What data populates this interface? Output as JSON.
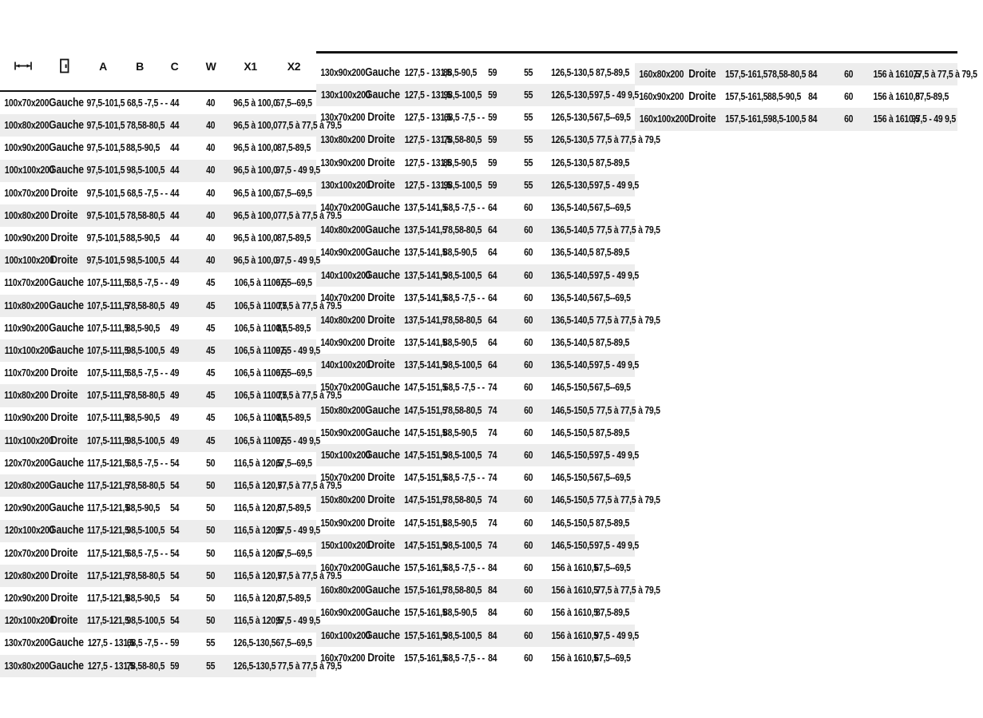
{
  "page": {
    "kind": "product-dimension-spec-table",
    "language": "fr"
  },
  "colors": {
    "rule": "#141414",
    "stripe": "#ededed",
    "text": "#111111",
    "background": "#ffffff"
  },
  "table": {
    "headers": {
      "size_icon": "width-dimension-icon",
      "side_icon": "door-icon",
      "a": "A",
      "b": "B",
      "c": "C",
      "w": "W",
      "x1": "X1",
      "x2": "X2"
    },
    "columns": [
      {
        "first_row_shaded": false,
        "rows": [
          [
            "100x70x200",
            "Gauche",
            "97,5-101,5",
            "68,5 -7,5 - -",
            "44",
            "40",
            "96,5 à 100,0",
            "67,5--69,5"
          ],
          [
            "100x80x200",
            "Gauche",
            "97,5-101,5",
            "78,58-80,5",
            "44",
            "40",
            "96,5 à 100,0",
            "77,5 à 77,5 à 79,5"
          ],
          [
            "100x90x200",
            "Gauche",
            "97,5-101,5",
            "88,5-90,5",
            "44",
            "40",
            "96,5 à 100,0",
            "87,5-89,5"
          ],
          [
            "100x100x200",
            "Gauche",
            "97,5-101,5",
            "98,5-100,5",
            "44",
            "40",
            "96,5 à 100,0",
            "97,5 - 49 9,5"
          ],
          [
            "100x70x200",
            "Droite",
            "97,5-101,5",
            "68,5 -7,5 - -",
            "44",
            "40",
            "96,5 à 100,0",
            "67,5--69,5"
          ],
          [
            "100x80x200",
            "Droite",
            "97,5-101,5",
            "78,58-80,5",
            "44",
            "40",
            "96,5 à 100,0",
            "77,5 à 77,5 à 79,5"
          ],
          [
            "100x90x200",
            "Droite",
            "97,5-101,5",
            "88,5-90,5",
            "44",
            "40",
            "96,5 à 100,0",
            "87,5-89,5"
          ],
          [
            "100x100x200",
            "Droite",
            "97,5-101,5",
            "98,5-100,5",
            "44",
            "40",
            "96,5 à 100,0",
            "97,5 - 49 9,5"
          ],
          [
            "110x70x200",
            "Gauche",
            "107,5-111,5",
            "68,5 -7,5 - -",
            "49",
            "45",
            "106,5 à 1100,5",
            "67,5--69,5"
          ],
          [
            "110x80x200",
            "Gauche",
            "107,5-111,5",
            "78,58-80,5",
            "49",
            "45",
            "106,5 à 1100,5",
            "77,5 à 77,5 à 79,5"
          ],
          [
            "110x90x200",
            "Gauche",
            "107,5-111,5",
            "88,5-90,5",
            "49",
            "45",
            "106,5 à 1100,5",
            "87,5-89,5"
          ],
          [
            "110x100x200",
            "Gauche",
            "107,5-111,5",
            "98,5-100,5",
            "49",
            "45",
            "106,5 à 1100,5",
            "97,5 - 49 9,5"
          ],
          [
            "110x70x200",
            "Droite",
            "107,5-111,5",
            "68,5 -7,5 - -",
            "49",
            "45",
            "106,5 à 1100,5",
            "67,5--69,5"
          ],
          [
            "110x80x200",
            "Droite",
            "107,5-111,5",
            "78,58-80,5",
            "49",
            "45",
            "106,5 à 1100,5",
            "77,5 à 77,5 à 79,5"
          ],
          [
            "110x90x200",
            "Droite",
            "107,5-111,5",
            "88,5-90,5",
            "49",
            "45",
            "106,5 à 1100,5",
            "87,5-89,5"
          ],
          [
            "110x100x200",
            "Droite",
            "107,5-111,5",
            "98,5-100,5",
            "49",
            "45",
            "106,5 à 1100,5",
            "97,5 - 49 9,5"
          ],
          [
            "120x70x200",
            "Gauche",
            "117,5-121,5",
            "68,5 -7,5 - -",
            "54",
            "50",
            "116,5 à 120,5",
            "67,5--69,5"
          ],
          [
            "120x80x200",
            "Gauche",
            "117,5-121,5",
            "78,58-80,5",
            "54",
            "50",
            "116,5 à 120,5",
            "77,5 à 77,5 à 79,5"
          ],
          [
            "120x90x200",
            "Gauche",
            "117,5-121,5",
            "88,5-90,5",
            "54",
            "50",
            "116,5 à 120,5",
            "87,5-89,5"
          ],
          [
            "120x100x200",
            "Gauche",
            "117,5-121,5",
            "98,5-100,5",
            "54",
            "50",
            "116,5 à 120,5",
            "97,5 - 49 9,5"
          ],
          [
            "120x70x200",
            "Droite",
            "117,5-121,5",
            "68,5 -7,5 - -",
            "54",
            "50",
            "116,5 à 120,5",
            "67,5--69,5"
          ],
          [
            "120x80x200",
            "Droite",
            "117,5-121,5",
            "78,58-80,5",
            "54",
            "50",
            "116,5 à 120,5",
            "77,5 à 77,5 à 79,5"
          ],
          [
            "120x90x200",
            "Droite",
            "117,5-121,5",
            "88,5-90,5",
            "54",
            "50",
            "116,5 à 120,5",
            "87,5-89,5"
          ],
          [
            "120x100x200",
            "Droite",
            "117,5-121,5",
            "98,5-100,5",
            "54",
            "50",
            "116,5 à 120,5",
            "97,5 - 49 9,5"
          ],
          [
            "130x70x200",
            "Gauche",
            "127,5 - 131,5",
            "68,5 -7,5 - -",
            "59",
            "55",
            "126,5-130,5",
            "67,5--69,5"
          ],
          [
            "130x80x200",
            "Gauche",
            "127,5 - 131,5",
            "78,58-80,5",
            "59",
            "55",
            "126,5-130,5",
            "77,5 à 77,5 à 79,5"
          ]
        ]
      },
      {
        "first_row_shaded": false,
        "rows": [
          [
            "130x90x200",
            "Gauche",
            "127,5 - 131,5",
            "88,5-90,5",
            "59",
            "55",
            "126,5-130,5",
            "87,5-89,5"
          ],
          [
            "130x100x200",
            "Gauche",
            "127,5 - 131,5",
            "98,5-100,5",
            "59",
            "55",
            "126,5-130,5",
            "97,5 - 49 9,5"
          ],
          [
            "130x70x200",
            "Droite",
            "127,5 - 131,5",
            "68,5 -7,5 - -",
            "59",
            "55",
            "126,5-130,5",
            "67,5--69,5"
          ],
          [
            "130x80x200",
            "Droite",
            "127,5 - 131,5",
            "78,58-80,5",
            "59",
            "55",
            "126,5-130,5",
            "77,5 à 77,5 à 79,5"
          ],
          [
            "130x90x200",
            "Droite",
            "127,5 - 131,5",
            "88,5-90,5",
            "59",
            "55",
            "126,5-130,5",
            "87,5-89,5"
          ],
          [
            "130x100x200",
            "Droite",
            "127,5 - 131,5",
            "98,5-100,5",
            "59",
            "55",
            "126,5-130,5",
            "97,5 - 49 9,5"
          ],
          [
            "140x70x200",
            "Gauche",
            "137,5-141,5",
            "68,5 -7,5 - -",
            "64",
            "60",
            "136,5-140,5",
            "67,5--69,5"
          ],
          [
            "140x80x200",
            "Gauche",
            "137,5-141,5",
            "78,58-80,5",
            "64",
            "60",
            "136,5-140,5",
            "77,5 à 77,5 à 79,5"
          ],
          [
            "140x90x200",
            "Gauche",
            "137,5-141,5",
            "88,5-90,5",
            "64",
            "60",
            "136,5-140,5",
            "87,5-89,5"
          ],
          [
            "140x100x200",
            "Gauche",
            "137,5-141,5",
            "98,5-100,5",
            "64",
            "60",
            "136,5-140,5",
            "97,5 - 49 9,5"
          ],
          [
            "140x70x200",
            "Droite",
            "137,5-141,5",
            "68,5 -7,5 - -",
            "64",
            "60",
            "136,5-140,5",
            "67,5--69,5"
          ],
          [
            "140x80x200",
            "Droite",
            "137,5-141,5",
            "78,58-80,5",
            "64",
            "60",
            "136,5-140,5",
            "77,5 à 77,5 à 79,5"
          ],
          [
            "140x90x200",
            "Droite",
            "137,5-141,5",
            "88,5-90,5",
            "64",
            "60",
            "136,5-140,5",
            "87,5-89,5"
          ],
          [
            "140x100x200",
            "Droite",
            "137,5-141,5",
            "98,5-100,5",
            "64",
            "60",
            "136,5-140,5",
            "97,5 - 49 9,5"
          ],
          [
            "150x70x200",
            "Gauche",
            "147,5-151,5",
            "68,5 -7,5 - -",
            "74",
            "60",
            "146,5-150,5",
            "67,5--69,5"
          ],
          [
            "150x80x200",
            "Gauche",
            "147,5-151,5",
            "78,58-80,5",
            "74",
            "60",
            "146,5-150,5",
            "77,5 à 77,5 à 79,5"
          ],
          [
            "150x90x200",
            "Gauche",
            "147,5-151,5",
            "88,5-90,5",
            "74",
            "60",
            "146,5-150,5",
            "87,5-89,5"
          ],
          [
            "150x100x200",
            "Gauche",
            "147,5-151,5",
            "98,5-100,5",
            "74",
            "60",
            "146,5-150,5",
            "97,5 - 49 9,5"
          ],
          [
            "150x70x200",
            "Droite",
            "147,5-151,5",
            "68,5 -7,5 - -",
            "74",
            "60",
            "146,5-150,5",
            "67,5--69,5"
          ],
          [
            "150x80x200",
            "Droite",
            "147,5-151,5",
            "78,58-80,5",
            "74",
            "60",
            "146,5-150,5",
            "77,5 à 77,5 à 79,5"
          ],
          [
            "150x90x200",
            "Droite",
            "147,5-151,5",
            "88,5-90,5",
            "74",
            "60",
            "146,5-150,5",
            "87,5-89,5"
          ],
          [
            "150x100x200",
            "Droite",
            "147,5-151,5",
            "98,5-100,5",
            "74",
            "60",
            "146,5-150,5",
            "97,5 - 49 9,5"
          ],
          [
            "160x70x200",
            "Gauche",
            "157,5-161,5",
            "68,5 -7,5 - -",
            "84",
            "60",
            "156 à 1610,5",
            "67,5--69,5"
          ],
          [
            "160x80x200",
            "Gauche",
            "157,5-161,5",
            "78,58-80,5",
            "84",
            "60",
            "156 à 1610,5",
            "77,5 à 77,5 à 79,5"
          ],
          [
            "160x90x200",
            "Gauche",
            "157,5-161,5",
            "88,5-90,5",
            "84",
            "60",
            "156 à 1610,5",
            "87,5-89,5"
          ],
          [
            "160x100x200",
            "Gauche",
            "157,5-161,5",
            "98,5-100,5",
            "84",
            "60",
            "156 à 1610,5",
            "97,5 - 49 9,5"
          ],
          [
            "160x70x200",
            "Droite",
            "157,5-161,5",
            "68,5 -7,5 - -",
            "84",
            "60",
            "156 à 1610,5",
            "67,5--69,5"
          ]
        ]
      },
      {
        "first_row_shaded": true,
        "rows": [
          [
            "160x80x200",
            "Droite",
            "157,5-161,5",
            "78,58-80,5",
            "84",
            "60",
            "156 à 1610,5",
            "77,5 à 77,5 à 79,5"
          ],
          [
            "160x90x200",
            "Droite",
            "157,5-161,5",
            "88,5-90,5",
            "84",
            "60",
            "156 à 1610,5",
            "87,5-89,5"
          ],
          [
            "160x100x200",
            "Droite",
            "157,5-161,5",
            "98,5-100,5",
            "84",
            "60",
            "156 à 1610,5",
            "97,5 - 49 9,5"
          ]
        ]
      }
    ]
  }
}
